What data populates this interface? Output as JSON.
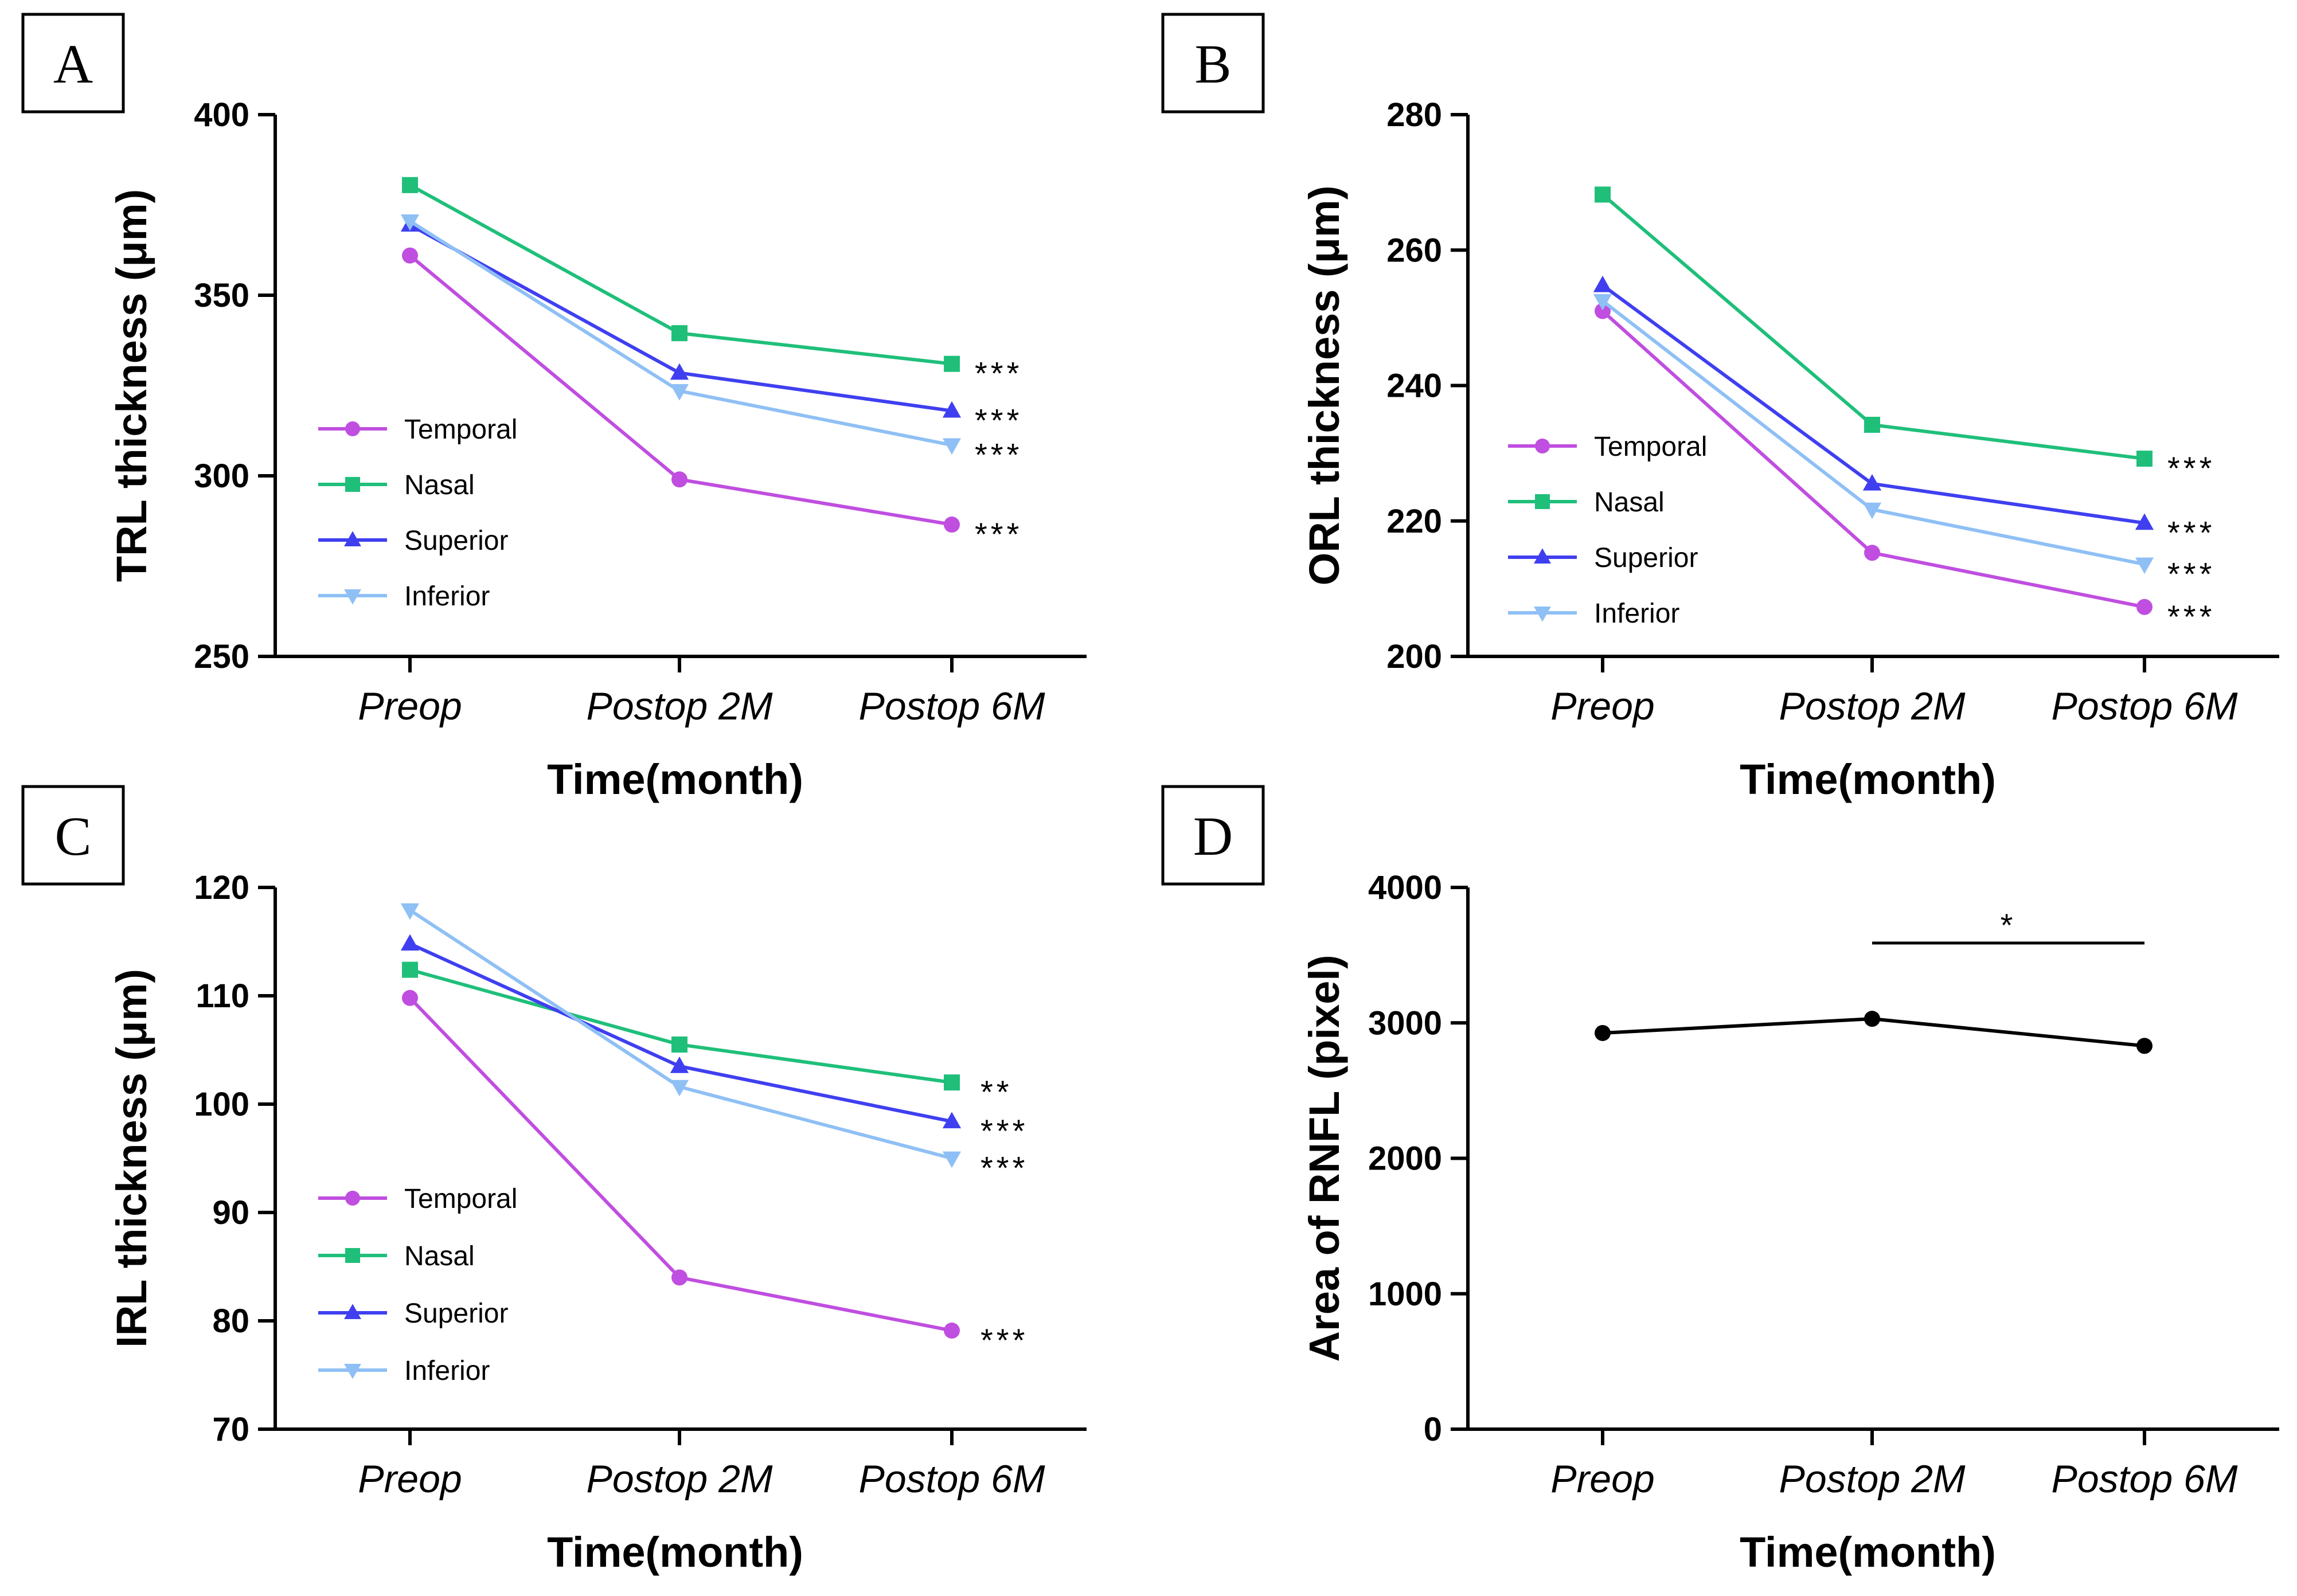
{
  "chart_data": [
    {
      "panel_label": "A",
      "type": "line",
      "title": "",
      "categories": [
        "Preop",
        "Postop 2M",
        "Postop 6M"
      ],
      "xlabel": "Time(month)",
      "ylabel": "TRL thickness (μm)",
      "ylim": [
        250,
        400
      ],
      "yticks": [
        250,
        300,
        350,
        400
      ],
      "legend": "center-left",
      "series": [
        {
          "name": "Temporal",
          "color": "#c04ee0",
          "marker": "circle",
          "values": [
            361,
            299,
            286.5
          ],
          "annotation": "***"
        },
        {
          "name": "Nasal",
          "color": "#1fbf7a",
          "marker": "square",
          "values": [
            380.5,
            339.5,
            331
          ],
          "annotation": "***"
        },
        {
          "name": "Superior",
          "color": "#3f3ff0",
          "marker": "triangle-up",
          "values": [
            369.5,
            328.5,
            318
          ],
          "annotation": "***"
        },
        {
          "name": "Inferior",
          "color": "#8fc0f5",
          "marker": "triangle-down",
          "values": [
            370.5,
            323.5,
            308.5
          ],
          "annotation": "***"
        }
      ]
    },
    {
      "panel_label": "B",
      "type": "line",
      "title": "",
      "categories": [
        "Preop",
        "Postop 2M",
        "Postop 6M"
      ],
      "xlabel": "Time(month)",
      "ylabel": "ORL thickness (μm)",
      "ylim": [
        200,
        280
      ],
      "yticks": [
        200,
        220,
        240,
        260,
        280
      ],
      "legend": "center-left",
      "series": [
        {
          "name": "Temporal",
          "color": "#c04ee0",
          "marker": "circle",
          "values": [
            251,
            215.3,
            207.3
          ],
          "annotation": "***"
        },
        {
          "name": "Nasal",
          "color": "#1fbf7a",
          "marker": "square",
          "values": [
            268.2,
            234.2,
            229.2
          ],
          "annotation": "***"
        },
        {
          "name": "Superior",
          "color": "#3f3ff0",
          "marker": "triangle-up",
          "values": [
            254.8,
            225.5,
            219.7
          ],
          "annotation": "***"
        },
        {
          "name": "Inferior",
          "color": "#8fc0f5",
          "marker": "triangle-down",
          "values": [
            252.5,
            221.7,
            213.6
          ],
          "annotation": "***"
        }
      ]
    },
    {
      "panel_label": "C",
      "type": "line",
      "title": "",
      "categories": [
        "Preop",
        "Postop 2M",
        "Postop 6M"
      ],
      "xlabel": "Time(month)",
      "ylabel": "IRL thickness (μm)",
      "ylim": [
        70,
        120
      ],
      "yticks": [
        70,
        80,
        90,
        100,
        110,
        120
      ],
      "legend": "bottom-left",
      "series": [
        {
          "name": "Temporal",
          "color": "#c04ee0",
          "marker": "circle",
          "values": [
            109.8,
            84,
            79.1
          ],
          "annotation": "***"
        },
        {
          "name": "Nasal",
          "color": "#1fbf7a",
          "marker": "square",
          "values": [
            112.4,
            105.5,
            102
          ],
          "annotation": "**"
        },
        {
          "name": "Superior",
          "color": "#3f3ff0",
          "marker": "triangle-up",
          "values": [
            114.8,
            103.5,
            98.4
          ],
          "annotation": "***"
        },
        {
          "name": "Inferior",
          "color": "#8fc0f5",
          "marker": "triangle-down",
          "values": [
            117.9,
            101.6,
            95
          ],
          "annotation": "***"
        }
      ]
    },
    {
      "panel_label": "D",
      "type": "line",
      "title": "",
      "categories": [
        "Preop",
        "Postop 2M",
        "Postop 6M"
      ],
      "xlabel": "Time(month)",
      "ylabel": "Area of RNFL (pixel)",
      "ylim": [
        0,
        4000
      ],
      "yticks": [
        0,
        1000,
        2000,
        3000,
        4000
      ],
      "legend": "none",
      "series": [
        {
          "name": "RNFL",
          "color": "#000000",
          "marker": "circle",
          "values": [
            2925,
            3030,
            2830
          ]
        }
      ],
      "significance": [
        {
          "from": "Postop 2M",
          "to": "Postop 6M",
          "label": "*"
        }
      ]
    }
  ]
}
